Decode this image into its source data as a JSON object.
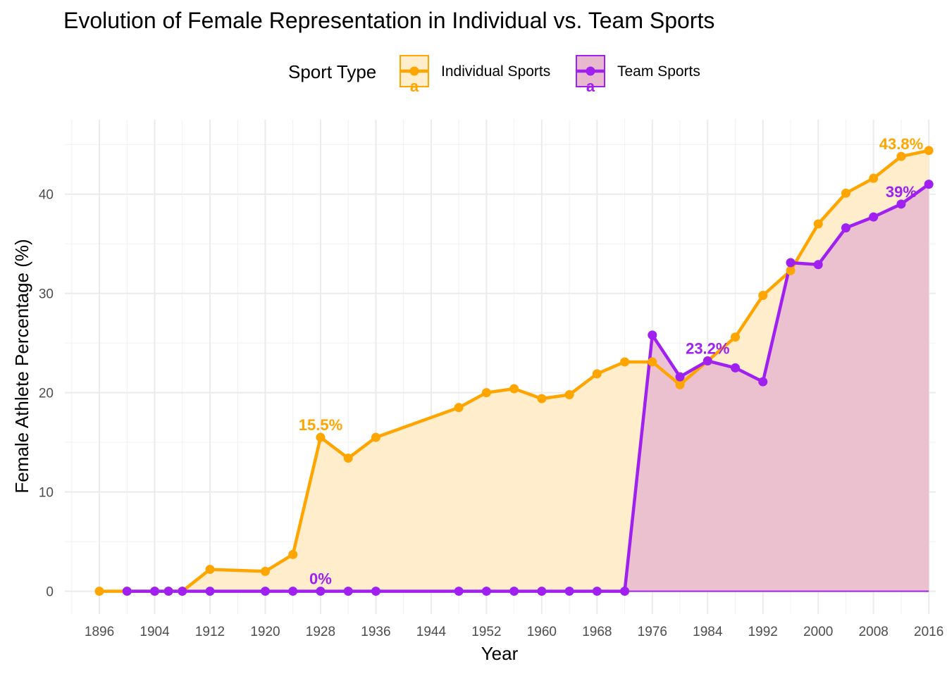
{
  "chart_data": {
    "type": "area",
    "title": "Evolution of Female Representation in Individual vs. Team Sports",
    "xlabel": "Year",
    "ylabel": "Female Athlete Percentage (%)",
    "xlim": [
      1891,
      2017
    ],
    "ylim": [
      -2.3,
      47.5
    ],
    "x_ticks": [
      1896,
      1904,
      1912,
      1920,
      1928,
      1936,
      1944,
      1952,
      1960,
      1968,
      1976,
      1984,
      1992,
      2000,
      2008,
      2016
    ],
    "y_ticks": [
      0,
      10,
      20,
      30,
      40
    ],
    "grid": true,
    "legend": {
      "title": "Sport Type",
      "position": "top",
      "key_glyph": "a"
    },
    "series": [
      {
        "name": "Individual Sports",
        "color": "#FFA500",
        "fill": "#FFEDCC",
        "points": [
          {
            "x": 1896,
            "y": 0
          },
          {
            "x": 1900,
            "y": 0
          },
          {
            "x": 1904,
            "y": 0
          },
          {
            "x": 1906,
            "y": 0
          },
          {
            "x": 1908,
            "y": 0
          },
          {
            "x": 1912,
            "y": 2.2
          },
          {
            "x": 1920,
            "y": 2.0
          },
          {
            "x": 1924,
            "y": 3.7
          },
          {
            "x": 1928,
            "y": 15.5
          },
          {
            "x": 1932,
            "y": 13.4
          },
          {
            "x": 1936,
            "y": 15.5
          },
          {
            "x": 1948,
            "y": 18.5
          },
          {
            "x": 1952,
            "y": 20.0
          },
          {
            "x": 1956,
            "y": 20.4
          },
          {
            "x": 1960,
            "y": 19.4
          },
          {
            "x": 1964,
            "y": 19.8
          },
          {
            "x": 1968,
            "y": 21.9
          },
          {
            "x": 1972,
            "y": 23.1
          },
          {
            "x": 1976,
            "y": 23.1
          },
          {
            "x": 1980,
            "y": 20.8
          },
          {
            "x": 1984,
            "y": 23.2
          },
          {
            "x": 1988,
            "y": 25.6
          },
          {
            "x": 1992,
            "y": 29.8
          },
          {
            "x": 1996,
            "y": 32.3
          },
          {
            "x": 2000,
            "y": 37.0
          },
          {
            "x": 2004,
            "y": 40.1
          },
          {
            "x": 2008,
            "y": 41.6
          },
          {
            "x": 2012,
            "y": 43.8
          },
          {
            "x": 2016,
            "y": 44.4
          }
        ]
      },
      {
        "name": "Team Sports",
        "color": "#A020F0",
        "fill": "#E8B8CF",
        "points": [
          {
            "x": 1900,
            "y": 0
          },
          {
            "x": 1904,
            "y": 0
          },
          {
            "x": 1906,
            "y": 0
          },
          {
            "x": 1908,
            "y": 0
          },
          {
            "x": 1912,
            "y": 0
          },
          {
            "x": 1920,
            "y": 0
          },
          {
            "x": 1924,
            "y": 0
          },
          {
            "x": 1928,
            "y": 0
          },
          {
            "x": 1932,
            "y": 0
          },
          {
            "x": 1936,
            "y": 0
          },
          {
            "x": 1948,
            "y": 0
          },
          {
            "x": 1952,
            "y": 0
          },
          {
            "x": 1956,
            "y": 0
          },
          {
            "x": 1960,
            "y": 0
          },
          {
            "x": 1964,
            "y": 0
          },
          {
            "x": 1968,
            "y": 0
          },
          {
            "x": 1972,
            "y": 0
          },
          {
            "x": 1976,
            "y": 25.8
          },
          {
            "x": 1980,
            "y": 21.6
          },
          {
            "x": 1984,
            "y": 23.2
          },
          {
            "x": 1988,
            "y": 22.5
          },
          {
            "x": 1992,
            "y": 21.1
          },
          {
            "x": 1996,
            "y": 33.1
          },
          {
            "x": 2000,
            "y": 32.9
          },
          {
            "x": 2004,
            "y": 36.6
          },
          {
            "x": 2008,
            "y": 37.7
          },
          {
            "x": 2012,
            "y": 39.0
          },
          {
            "x": 2016,
            "y": 41.0
          }
        ]
      }
    ],
    "annotations": [
      {
        "series": 0,
        "x": 1928,
        "y": 15.5,
        "text": "15.5%"
      },
      {
        "series": 0,
        "x": 2012,
        "y": 43.8,
        "text": "43.8%"
      },
      {
        "series": 1,
        "x": 1928,
        "y": 0,
        "text": "0%"
      },
      {
        "series": 1,
        "x": 1984,
        "y": 23.2,
        "text": "23.2%"
      },
      {
        "series": 1,
        "x": 2012,
        "y": 39.0,
        "text": "39%"
      }
    ]
  }
}
